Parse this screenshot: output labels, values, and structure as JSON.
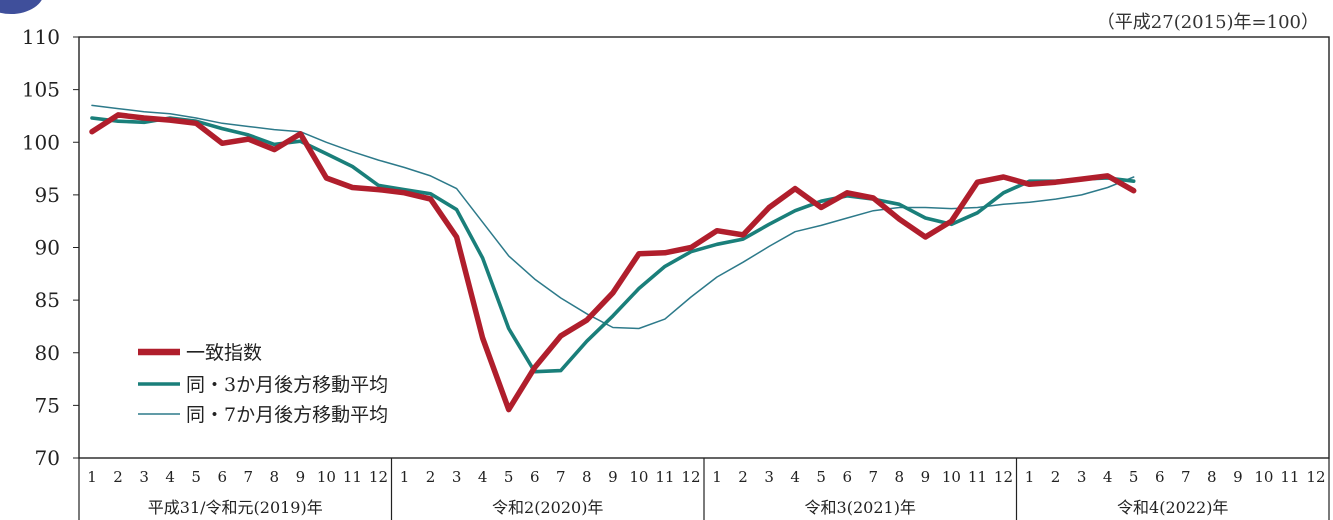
{
  "chart_data": {
    "type": "line",
    "note": "（平成27(2015)年=100）",
    "ylim": [
      70,
      110
    ],
    "yticks": [
      "110",
      "105",
      "100",
      "95",
      "90",
      "85",
      "80",
      "75",
      "70"
    ],
    "month_labels": [
      "1",
      "2",
      "3",
      "4",
      "5",
      "6",
      "7",
      "8",
      "9",
      "10",
      "11",
      "12"
    ],
    "years": [
      "平成31/令和元(2019)年",
      "令和2(2020)年",
      "令和3(2021)年",
      "令和4(2022)年"
    ],
    "legend": [
      "一致指数",
      "同・3か月後方移動平均",
      "同・7か月後方移動平均"
    ],
    "colors": [
      "#b01e2c",
      "#1a7f7a",
      "#2d7a8a"
    ],
    "series": [
      {
        "name": "一致指数",
        "values": [
          101.0,
          102.6,
          102.3,
          102.1,
          101.8,
          99.9,
          100.3,
          99.3,
          100.8,
          96.6,
          95.7,
          95.5,
          95.2,
          94.6,
          91.0,
          81.4,
          74.6,
          78.6,
          81.6,
          83.1,
          85.7,
          89.4,
          89.5,
          90.0,
          91.6,
          91.2,
          93.8,
          95.6,
          93.8,
          95.2,
          94.7,
          92.7,
          91.0,
          92.5,
          96.2,
          96.7,
          96.0,
          96.2,
          96.5,
          96.8,
          95.4
        ]
      },
      {
        "name": "同・3か月後方移動平均",
        "values": [
          102.3,
          102.0,
          101.9,
          102.3,
          102.0,
          101.3,
          100.7,
          99.8,
          100.1,
          98.9,
          97.7,
          95.9,
          95.5,
          95.1,
          93.6,
          89.0,
          82.3,
          78.2,
          78.3,
          81.1,
          83.5,
          86.1,
          88.2,
          89.6,
          90.3,
          90.8,
          92.2,
          93.5,
          94.4,
          94.9,
          94.6,
          94.1,
          92.8,
          92.2,
          93.3,
          95.2,
          96.3,
          96.3,
          96.5,
          96.6,
          96.3
        ]
      },
      {
        "name": "同・7か月後方移動平均",
        "values": [
          103.5,
          103.2,
          102.9,
          102.7,
          102.3,
          101.8,
          101.5,
          101.2,
          101.0,
          100.0,
          99.1,
          98.3,
          97.6,
          96.8,
          95.6,
          92.4,
          89.2,
          87.0,
          85.2,
          83.7,
          82.4,
          82.3,
          83.2,
          85.3,
          87.2,
          88.6,
          90.1,
          91.5,
          92.1,
          92.8,
          93.5,
          93.8,
          93.8,
          93.7,
          93.8,
          94.1,
          94.3,
          94.6,
          95.0,
          95.7,
          96.7
        ]
      }
    ]
  }
}
